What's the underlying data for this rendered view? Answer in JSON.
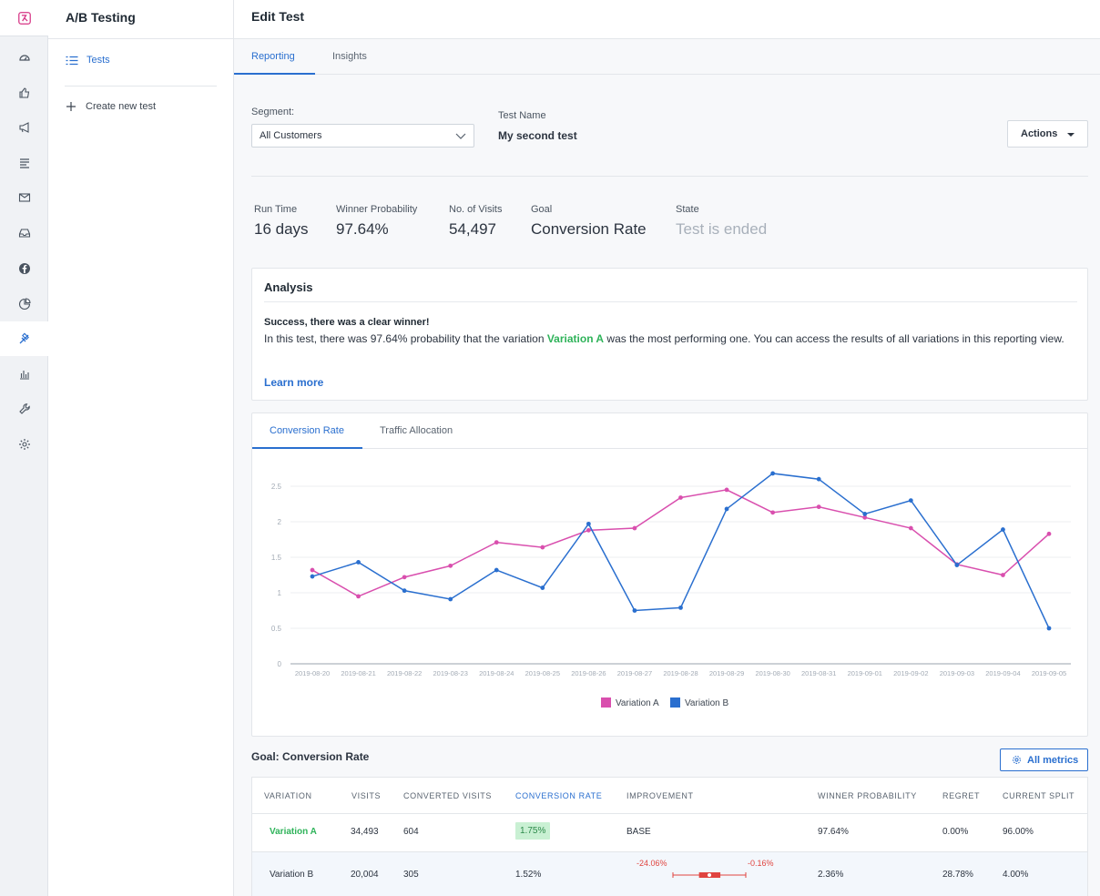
{
  "app": {
    "logo_icon": "brand-logo-icon",
    "section_title": "A/B Testing",
    "page_title": "Edit Test"
  },
  "rail_icons": [
    "dashboard-icon",
    "thumbs-up-icon",
    "megaphone-icon",
    "list-icon",
    "mail-icon",
    "inbox-icon",
    "facebook-icon",
    "pie-chart-icon",
    "ab-test-icon",
    "bar-chart-icon",
    "wrench-icon",
    "gear-icon"
  ],
  "sidebar": {
    "tests_label": "Tests",
    "create_label": "Create new test"
  },
  "tabs": [
    "Reporting",
    "Insights"
  ],
  "segment": {
    "label": "Segment:",
    "value": "All Customers"
  },
  "test_name": {
    "label": "Test Name",
    "value": "My second test"
  },
  "actions_label": "Actions",
  "stats": [
    {
      "label": "Run Time",
      "value": "16 days"
    },
    {
      "label": "Winner Probability",
      "value": "97.64%"
    },
    {
      "label": "No. of Visits",
      "value": "54,497"
    },
    {
      "label": "Goal",
      "value": "Conversion Rate"
    },
    {
      "label": "State",
      "value": "Test is ended"
    }
  ],
  "analysis": {
    "title": "Analysis",
    "headline": "Success, there was a clear winner!",
    "body_pre": "In this test, there was 97.64% probability that the variation ",
    "winner": "Variation A",
    "body_post": " was the most performing one. You can access the results of all variations in this reporting view.",
    "learn_more": "Learn more"
  },
  "chart_tabs": [
    "Conversion Rate",
    "Traffic Allocation"
  ],
  "chart_data": {
    "type": "line",
    "x": [
      "2019-08-20",
      "2019-08-21",
      "2019-08-22",
      "2019-08-23",
      "2019-08-24",
      "2019-08-25",
      "2019-08-26",
      "2019-08-27",
      "2019-08-28",
      "2019-08-29",
      "2019-08-30",
      "2019-08-31",
      "2019-09-01",
      "2019-09-02",
      "2019-09-03",
      "2019-09-04",
      "2019-09-05"
    ],
    "yticks": [
      "0",
      "0.5",
      "1",
      "1.5",
      "2",
      "2.5"
    ],
    "ylim": [
      0,
      2.5
    ],
    "grid": true,
    "legend": "bottom-center",
    "series": [
      {
        "name": "Variation A",
        "color": "#d94fae",
        "values": [
          1.32,
          0.95,
          1.22,
          1.38,
          1.71,
          1.64,
          1.88,
          1.91,
          2.34,
          2.45,
          2.13,
          2.21,
          2.06,
          1.91,
          1.4,
          1.25,
          1.83
        ]
      },
      {
        "name": "Variation B",
        "color": "#2a6fcf",
        "values": [
          1.23,
          1.43,
          1.03,
          0.91,
          1.32,
          1.07,
          1.97,
          0.75,
          0.79,
          2.18,
          2.68,
          2.6,
          2.11,
          2.3,
          1.39,
          1.89,
          0.5
        ]
      }
    ]
  },
  "goal_title": "Goal: Conversion Rate",
  "all_metrics_label": "All metrics",
  "table": {
    "headers": [
      "VARIATION",
      "VISITS",
      "CONVERTED VISITS",
      "CONVERSION RATE",
      "IMPROVEMENT",
      "WINNER PROBABILITY",
      "REGRET",
      "CURRENT SPLIT"
    ],
    "rows": [
      {
        "variation": "Variation A",
        "visits": "34,493",
        "converted": "604",
        "rate": "1.75%",
        "improvement": "BASE",
        "winner_prob": "97.64%",
        "regret": "0.00%",
        "split": "96.00%"
      },
      {
        "variation": "Variation B",
        "visits": "20,004",
        "converted": "305",
        "rate": "1.52%",
        "imp_low": "-24.06%",
        "imp_high": "-0.16%",
        "winner_prob": "2.36%",
        "regret": "28.78%",
        "split": "4.00%"
      }
    ]
  },
  "improvement_interval": {
    "min": -24.06,
    "max": -0.16,
    "point": -12.1,
    "iqr": [
      -15.5,
      -8.5
    ]
  }
}
